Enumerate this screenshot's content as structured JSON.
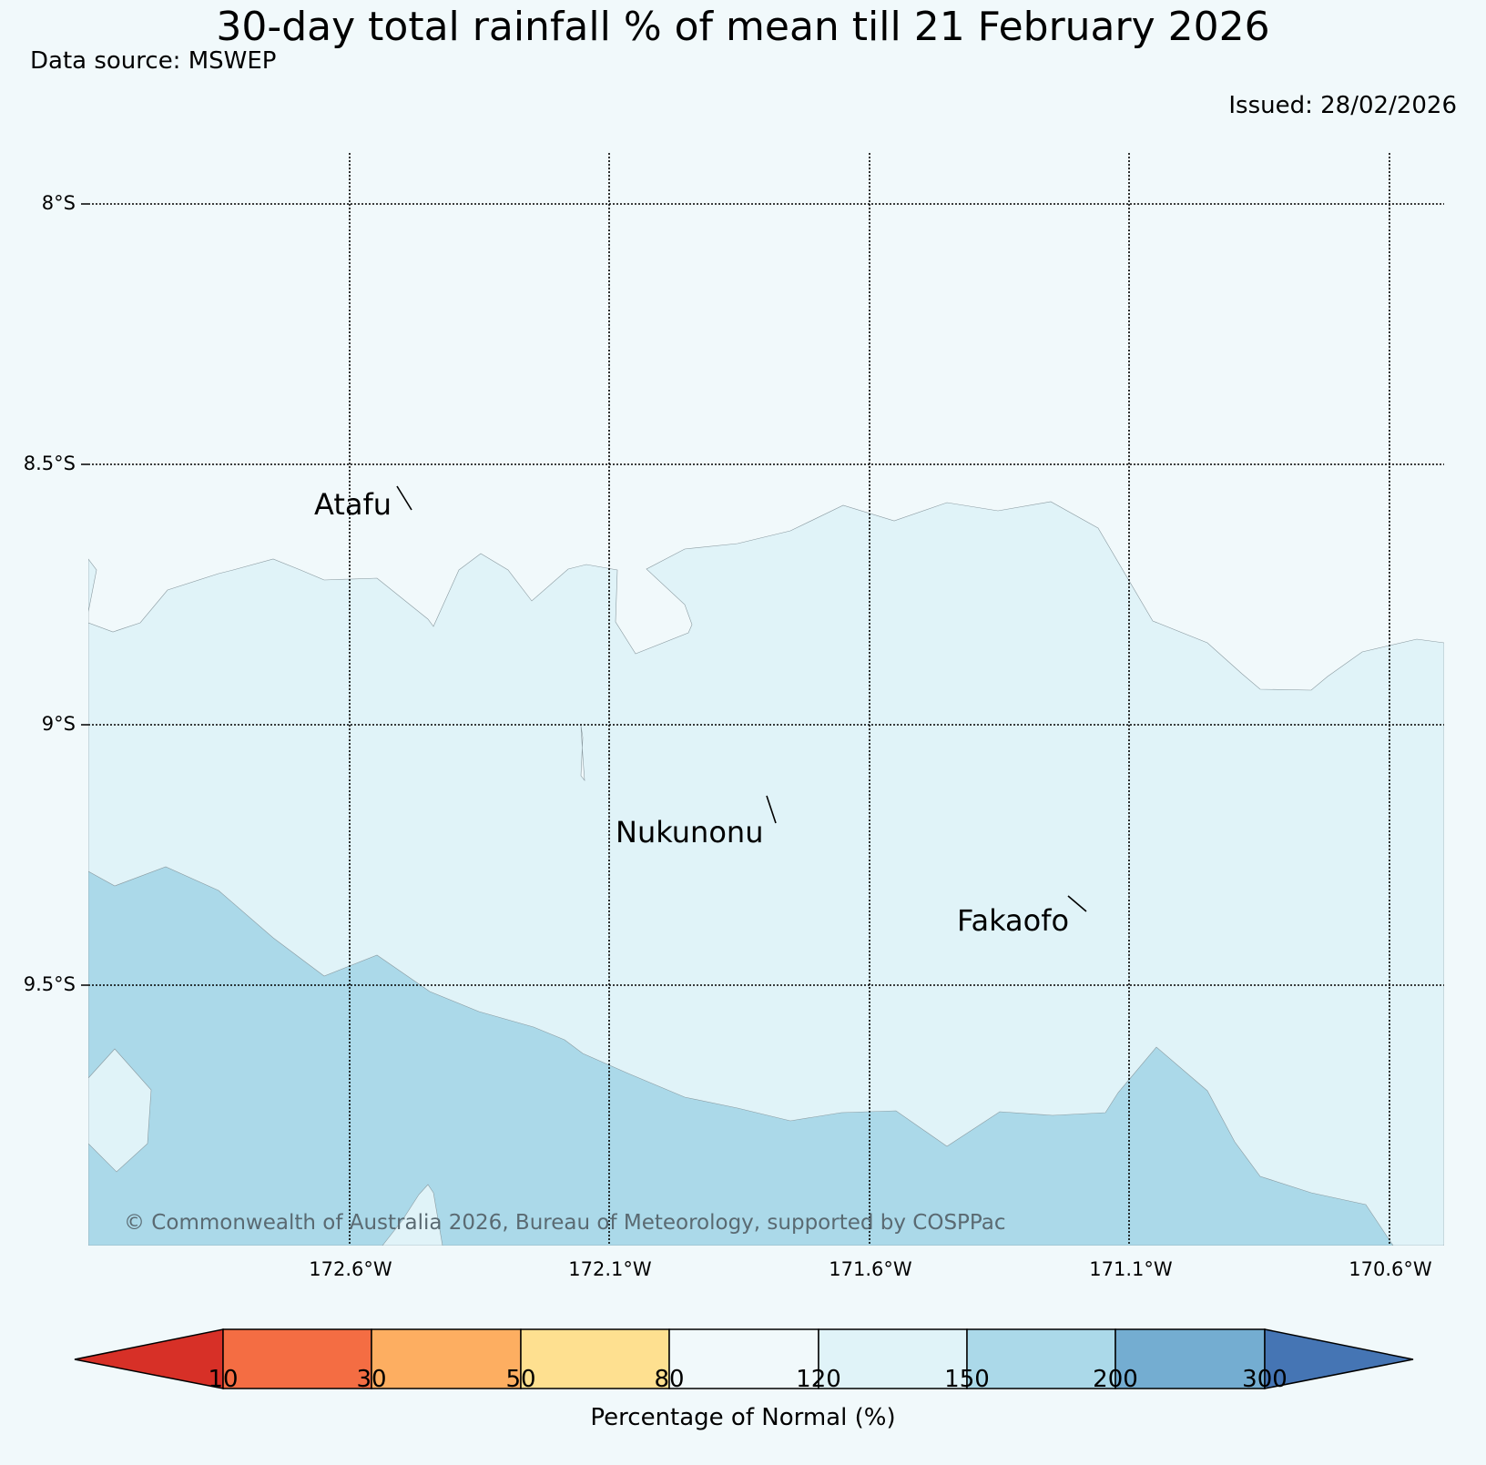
{
  "title": "30-day total rainfall % of mean till 21 February 2026",
  "data_source": "Data source: MSWEP",
  "issued": "Issued: 28/02/2026",
  "copyright": "© Commonwealth of Australia 2026, Bureau of Meteorology, supported by COSPPac",
  "map": {
    "latitude_labels": [
      "8°S",
      "8.5°S",
      "9°S",
      "9.5°S"
    ],
    "longitude_labels": [
      "172.6°W",
      "172.1°W",
      "171.6°W",
      "171.1°W",
      "170.6°W"
    ],
    "places": [
      {
        "name": "Atafu"
      },
      {
        "name": "Nukunonu"
      },
      {
        "name": "Fakaofo"
      }
    ],
    "region_colors": {
      "band_80_120": "#f1f9fb",
      "band_120_150": "#e0f3f8",
      "band_150_200": "#abd9e9"
    }
  },
  "colorbar": {
    "title": "Percentage of Normal (%)",
    "ticks": [
      "10",
      "30",
      "50",
      "80",
      "120",
      "150",
      "200",
      "300"
    ],
    "colors": [
      "#d73027",
      "#f46d43",
      "#fdae61",
      "#fee090",
      "#f1f9fb",
      "#e0f3f8",
      "#abd9e9",
      "#74add1",
      "#4575b4"
    ]
  }
}
